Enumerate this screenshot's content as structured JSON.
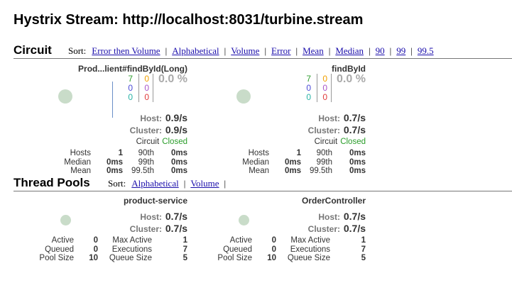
{
  "header": {
    "title": "Hystrix Stream: http://localhost:8031/turbine.stream"
  },
  "circuit": {
    "title": "Circuit",
    "sort_label": "Sort:",
    "separator": "|",
    "sort_links": [
      "Error then Volume",
      "Alphabetical",
      "Volume",
      "Error",
      "Mean",
      "Median",
      "90",
      "99",
      "99.5"
    ],
    "cards": [
      {
        "name": "Prod...lient#findById(Long)",
        "counts": [
          "7",
          "0",
          "0"
        ],
        "counts2": [
          "0",
          "0",
          "0"
        ],
        "error_rate": "0.0 %",
        "host_label": "Host:",
        "host_rate": "0.9/s",
        "cluster_label": "Cluster:",
        "cluster_rate": "0.9/s",
        "circuit_label": "Circuit",
        "circuit_status": "Closed",
        "stats": [
          [
            "Hosts",
            "1",
            "90th",
            "0ms"
          ],
          [
            "Median",
            "0ms",
            "99th",
            "0ms"
          ],
          [
            "Mean",
            "0ms",
            "99.5th",
            "0ms"
          ]
        ]
      },
      {
        "name": "findById",
        "counts": [
          "7",
          "0",
          "0"
        ],
        "counts2": [
          "0",
          "0",
          "0"
        ],
        "error_rate": "0.0 %",
        "host_label": "Host:",
        "host_rate": "0.7/s",
        "cluster_label": "Cluster:",
        "cluster_rate": "0.7/s",
        "circuit_label": "Circuit",
        "circuit_status": "Closed",
        "stats": [
          [
            "Hosts",
            "1",
            "90th",
            "0ms"
          ],
          [
            "Median",
            "0ms",
            "99th",
            "0ms"
          ],
          [
            "Mean",
            "0ms",
            "99.5th",
            "0ms"
          ]
        ]
      }
    ]
  },
  "thread_pools": {
    "title": "Thread Pools",
    "sort_label": "Sort:",
    "separator": "|",
    "sort_links": [
      "Alphabetical",
      "Volume"
    ],
    "pools": [
      {
        "name": "product-service",
        "host_label": "Host:",
        "host_rate": "0.7/s",
        "cluster_label": "Cluster:",
        "cluster_rate": "0.7/s",
        "stats": [
          [
            "Active",
            "0",
            "Max Active",
            "1"
          ],
          [
            "Queued",
            "0",
            "Executions",
            "7"
          ],
          [
            "Pool Size",
            "10",
            "Queue Size",
            "5"
          ]
        ]
      },
      {
        "name": "OrderController",
        "host_label": "Host:",
        "host_rate": "0.7/s",
        "cluster_label": "Cluster:",
        "cluster_rate": "0.7/s",
        "stats": [
          [
            "Active",
            "0",
            "Max Active",
            "1"
          ],
          [
            "Queued",
            "0",
            "Executions",
            "7"
          ],
          [
            "Pool Size",
            "10",
            "Queue Size",
            "5"
          ]
        ]
      }
    ]
  }
}
